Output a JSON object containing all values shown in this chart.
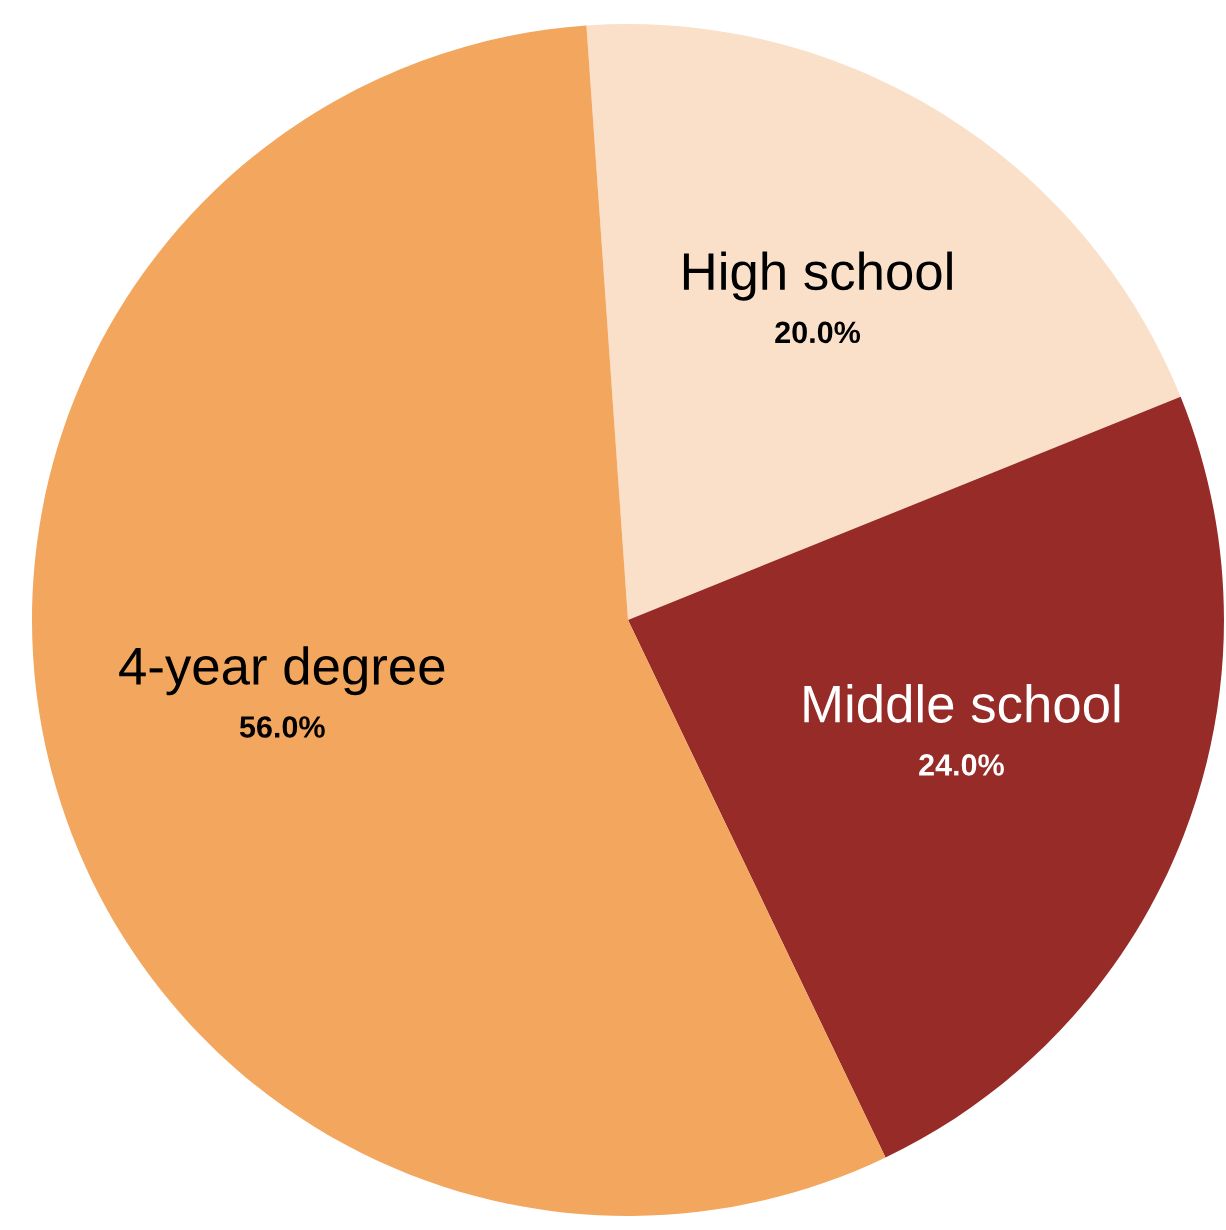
{
  "chart_data": {
    "type": "pie",
    "categories": [
      "High school",
      "Middle school",
      "4-year degree"
    ],
    "values": [
      20.0,
      24.0,
      56.0
    ],
    "colors": [
      "#fae0c8",
      "#962b27",
      "#f2a65e"
    ],
    "value_labels": [
      "20.0%",
      "24.0%",
      "56.0%"
    ]
  }
}
